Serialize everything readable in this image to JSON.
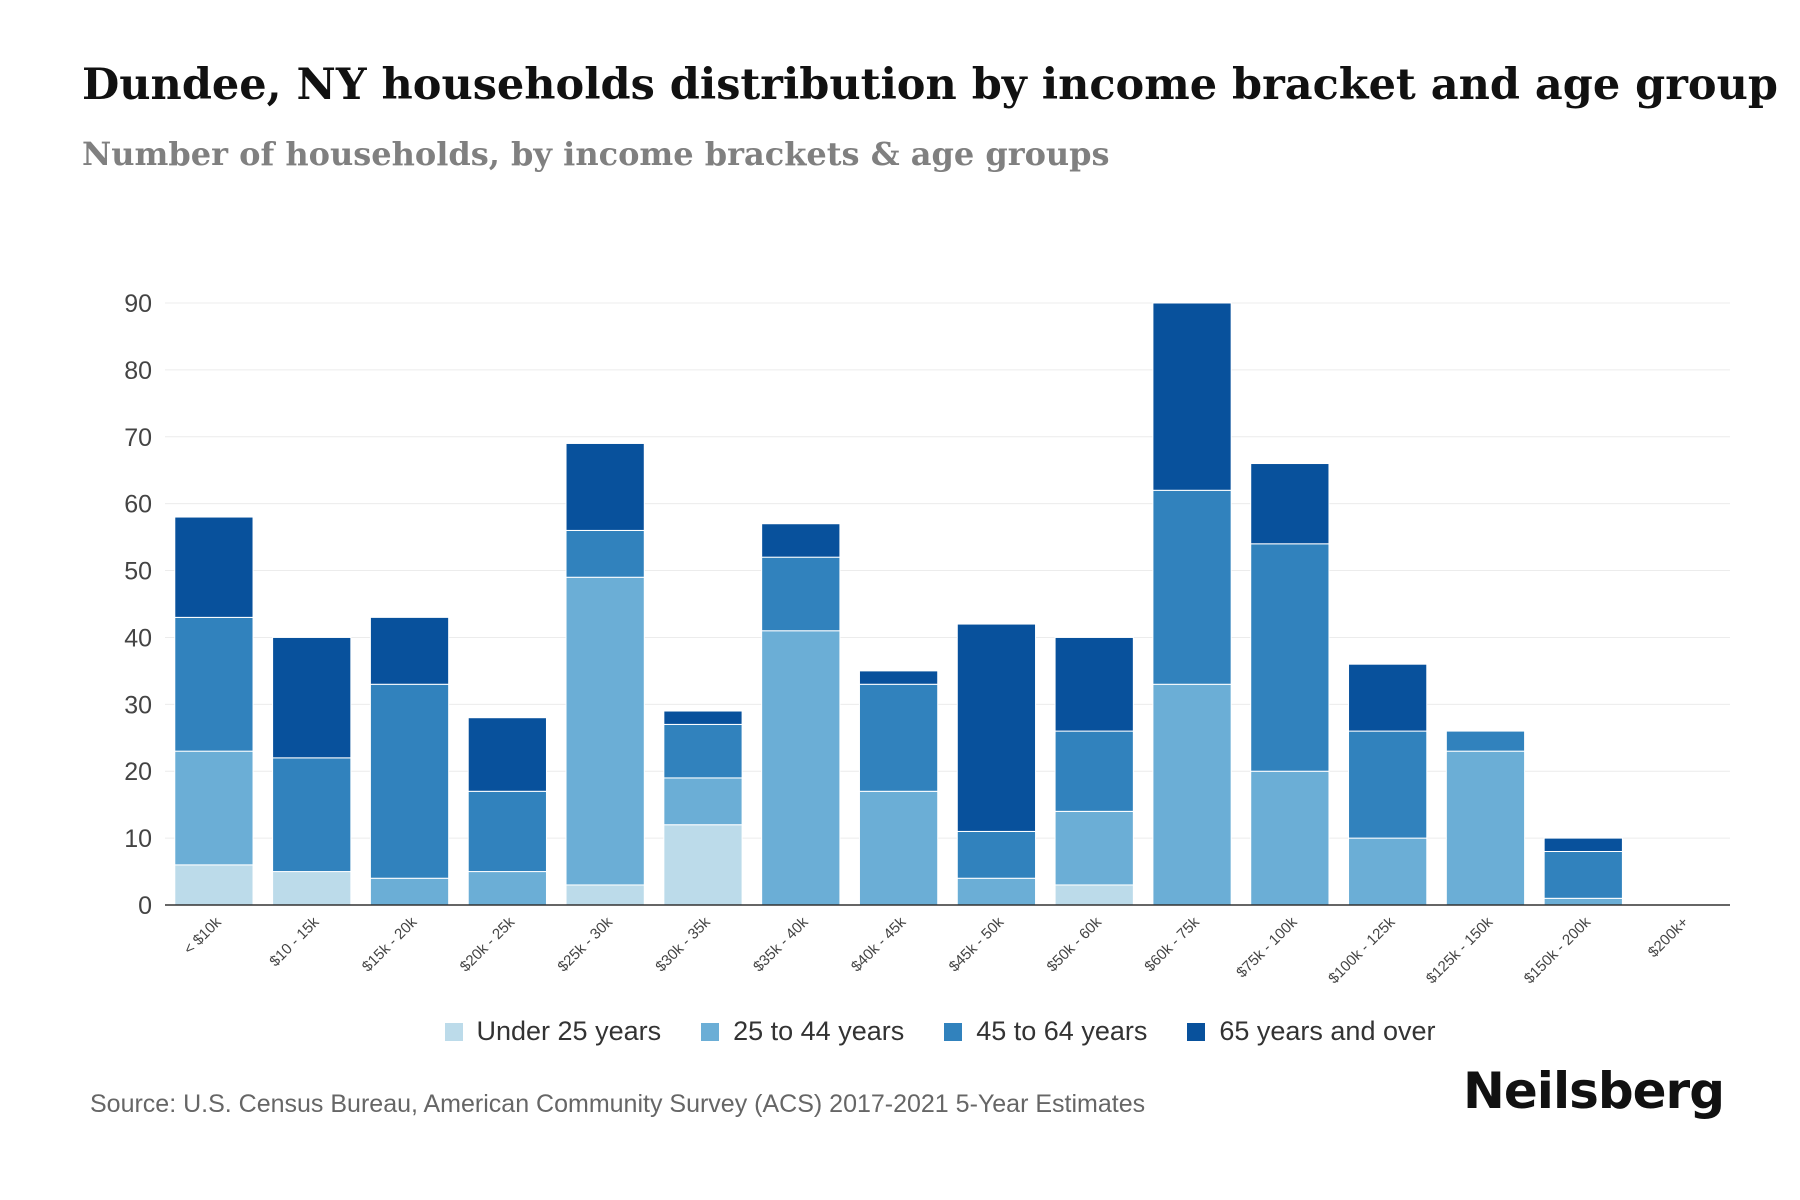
{
  "header": {
    "title": "Dundee, NY households distribution by income bracket and age group",
    "subtitle": "Number of households, by income brackets & age groups"
  },
  "chart_data": {
    "type": "bar",
    "stacked": true,
    "categories": [
      "< $10k",
      "$10 - 15k",
      "$15k - 20k",
      "$20k - 25k",
      "$25k - 30k",
      "$30k - 35k",
      "$35k - 40k",
      "$40k - 45k",
      "$45k - 50k",
      "$50k - 60k",
      "$60k - 75k",
      "$75k - 100k",
      "$100k - 125k",
      "$125k - 150k",
      "$150k - 200k",
      "$200k+"
    ],
    "series": [
      {
        "name": "Under 25 years",
        "color": "#bcdbea",
        "values": [
          6,
          5,
          0,
          0,
          3,
          12,
          0,
          0,
          0,
          3,
          0,
          0,
          0,
          0,
          0,
          0
        ]
      },
      {
        "name": "25 to 44 years",
        "color": "#6baed6",
        "values": [
          17,
          0,
          4,
          5,
          46,
          7,
          41,
          17,
          4,
          11,
          33,
          20,
          10,
          23,
          1,
          0
        ]
      },
      {
        "name": "45 to 64 years",
        "color": "#3182bd",
        "values": [
          20,
          17,
          29,
          12,
          7,
          8,
          11,
          16,
          7,
          12,
          29,
          34,
          16,
          3,
          7,
          0
        ]
      },
      {
        "name": "65 years and over",
        "color": "#08519c",
        "values": [
          15,
          18,
          10,
          11,
          13,
          2,
          5,
          2,
          31,
          14,
          28,
          12,
          10,
          0,
          2,
          0
        ]
      }
    ],
    "ylim": [
      0,
      90
    ],
    "yticks": [
      0,
      10,
      20,
      30,
      40,
      50,
      60,
      70,
      80,
      90
    ],
    "xlabel": "",
    "ylabel": "",
    "grid": true,
    "legend_position": "bottom"
  },
  "footer": {
    "source": "Source: U.S. Census Bureau, American Community Survey (ACS) 2017-2021 5-Year Estimates",
    "brand": "Neilsberg"
  }
}
